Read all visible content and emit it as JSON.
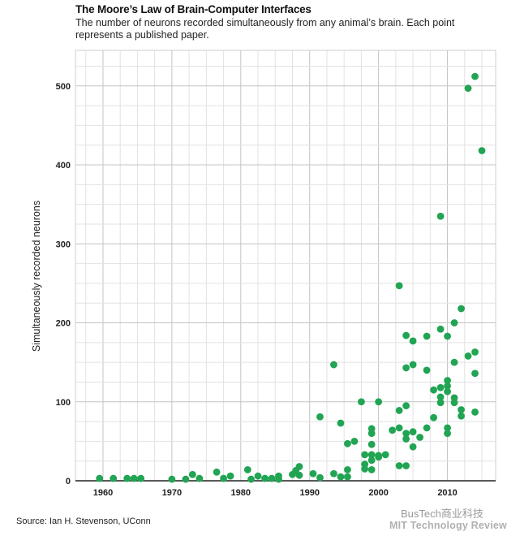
{
  "chart_data": {
    "type": "scatter",
    "title": "The Moore’s Law of Brain-Computer Interfaces",
    "subtitle": "The number of neurons recorded simultaneously from any animal’s brain. Each point represents a published paper.",
    "ylabel": "Simultaneously recorded neurons",
    "xlabel": "",
    "xlim": [
      1956,
      2017
    ],
    "ylim": [
      0,
      545
    ],
    "x_ticks": [
      1960,
      1970,
      1980,
      1990,
      2000,
      2010
    ],
    "y_ticks": [
      0,
      100,
      200,
      300,
      400,
      500
    ],
    "x_grid_step": 2.5,
    "y_grid_step": 25,
    "grid": true,
    "point_color": "#21a453",
    "points": [
      {
        "x": 1959.5,
        "y": 3
      },
      {
        "x": 1961.5,
        "y": 3
      },
      {
        "x": 1963.5,
        "y": 3
      },
      {
        "x": 1964.5,
        "y": 3
      },
      {
        "x": 1965.5,
        "y": 3
      },
      {
        "x": 1970,
        "y": 2
      },
      {
        "x": 1972,
        "y": 2
      },
      {
        "x": 1973,
        "y": 8
      },
      {
        "x": 1974,
        "y": 3
      },
      {
        "x": 1976.5,
        "y": 11
      },
      {
        "x": 1977.5,
        "y": 3
      },
      {
        "x": 1978.5,
        "y": 6
      },
      {
        "x": 1981,
        "y": 14
      },
      {
        "x": 1981.5,
        "y": 2
      },
      {
        "x": 1982.5,
        "y": 6
      },
      {
        "x": 1983.5,
        "y": 3
      },
      {
        "x": 1984.5,
        "y": 3
      },
      {
        "x": 1985.5,
        "y": 6
      },
      {
        "x": 1985.5,
        "y": 2
      },
      {
        "x": 1987.5,
        "y": 8
      },
      {
        "x": 1988,
        "y": 13
      },
      {
        "x": 1988.5,
        "y": 18
      },
      {
        "x": 1988.5,
        "y": 7
      },
      {
        "x": 1990.5,
        "y": 9
      },
      {
        "x": 1991.5,
        "y": 81
      },
      {
        "x": 1991.5,
        "y": 4
      },
      {
        "x": 1993.5,
        "y": 147
      },
      {
        "x": 1993.5,
        "y": 9
      },
      {
        "x": 1994.5,
        "y": 73
      },
      {
        "x": 1994.5,
        "y": 5
      },
      {
        "x": 1995.5,
        "y": 47
      },
      {
        "x": 1995.5,
        "y": 14
      },
      {
        "x": 1995.5,
        "y": 5
      },
      {
        "x": 1996.5,
        "y": 50
      },
      {
        "x": 1997.5,
        "y": 100
      },
      {
        "x": 1998,
        "y": 33
      },
      {
        "x": 1998,
        "y": 21
      },
      {
        "x": 1998,
        "y": 15
      },
      {
        "x": 1999,
        "y": 66
      },
      {
        "x": 1999,
        "y": 60
      },
      {
        "x": 1999,
        "y": 46
      },
      {
        "x": 1999,
        "y": 33
      },
      {
        "x": 1999,
        "y": 26
      },
      {
        "x": 1999,
        "y": 14
      },
      {
        "x": 2000,
        "y": 100
      },
      {
        "x": 2000,
        "y": 30
      },
      {
        "x": 2000,
        "y": 32
      },
      {
        "x": 2001,
        "y": 33
      },
      {
        "x": 2002,
        "y": 64
      },
      {
        "x": 2003,
        "y": 247
      },
      {
        "x": 2003,
        "y": 89
      },
      {
        "x": 2003,
        "y": 67
      },
      {
        "x": 2003,
        "y": 19
      },
      {
        "x": 2004,
        "y": 184
      },
      {
        "x": 2004,
        "y": 143
      },
      {
        "x": 2004,
        "y": 95
      },
      {
        "x": 2004,
        "y": 60
      },
      {
        "x": 2004,
        "y": 53
      },
      {
        "x": 2004,
        "y": 19
      },
      {
        "x": 2005,
        "y": 177
      },
      {
        "x": 2005,
        "y": 147
      },
      {
        "x": 2005,
        "y": 62
      },
      {
        "x": 2005,
        "y": 43
      },
      {
        "x": 2006,
        "y": 55
      },
      {
        "x": 2007,
        "y": 183
      },
      {
        "x": 2007,
        "y": 140
      },
      {
        "x": 2007,
        "y": 67
      },
      {
        "x": 2008,
        "y": 115
      },
      {
        "x": 2008,
        "y": 80
      },
      {
        "x": 2009,
        "y": 335
      },
      {
        "x": 2009,
        "y": 192
      },
      {
        "x": 2009,
        "y": 118
      },
      {
        "x": 2009,
        "y": 106
      },
      {
        "x": 2009,
        "y": 99
      },
      {
        "x": 2010,
        "y": 183
      },
      {
        "x": 2010,
        "y": 127
      },
      {
        "x": 2010,
        "y": 120
      },
      {
        "x": 2010,
        "y": 113
      },
      {
        "x": 2010,
        "y": 67
      },
      {
        "x": 2010,
        "y": 60
      },
      {
        "x": 2011,
        "y": 200
      },
      {
        "x": 2011,
        "y": 150
      },
      {
        "x": 2011,
        "y": 105
      },
      {
        "x": 2011,
        "y": 99
      },
      {
        "x": 2012,
        "y": 218
      },
      {
        "x": 2012,
        "y": 90
      },
      {
        "x": 2012,
        "y": 82
      },
      {
        "x": 2013,
        "y": 497
      },
      {
        "x": 2013,
        "y": 158
      },
      {
        "x": 2014,
        "y": 512
      },
      {
        "x": 2014,
        "y": 163
      },
      {
        "x": 2014,
        "y": 136
      },
      {
        "x": 2014,
        "y": 87
      },
      {
        "x": 2015,
        "y": 418
      }
    ]
  },
  "source": "Source: Ian H. Stevenson, UConn",
  "watermark": {
    "line1": "BusTech商业科技",
    "line2": "MIT Technology Review"
  }
}
